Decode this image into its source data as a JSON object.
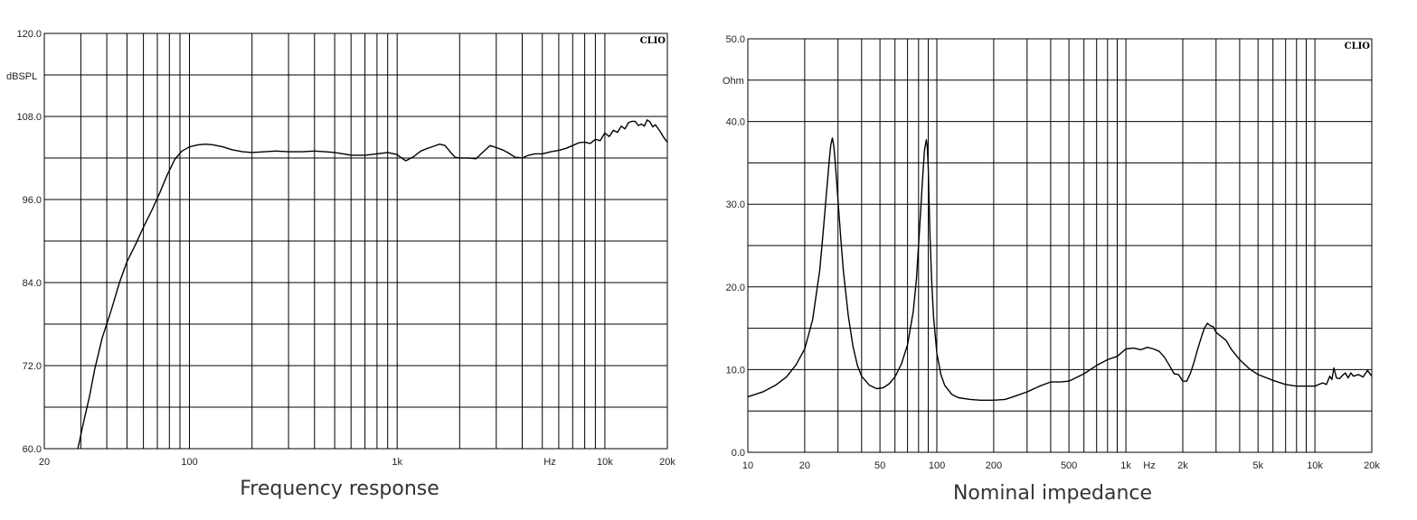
{
  "chart_data": [
    {
      "type": "line",
      "caption": "Frequency response",
      "brand": "CLIO",
      "ylabel": "dBSPL",
      "xlabel": "Hz",
      "x_scale": "log",
      "xlim": [
        20,
        20000
      ],
      "ylim": [
        60,
        120
      ],
      "y_ticks": [
        {
          "value": 60,
          "label": "60.0"
        },
        {
          "value": 72,
          "label": "72.0"
        },
        {
          "value": 84,
          "label": "84.0"
        },
        {
          "value": 96,
          "label": "96.0"
        },
        {
          "value": 108,
          "label": "108.0"
        },
        {
          "value": 120,
          "label": "120.0"
        }
      ],
      "y_gridlines": [
        60,
        66,
        72,
        78,
        84,
        90,
        96,
        102,
        108,
        114,
        120
      ],
      "x_ticks": [
        {
          "value": 20,
          "label": "20"
        },
        {
          "value": 100,
          "label": "100"
        },
        {
          "value": 1000,
          "label": "1k"
        },
        {
          "value": 10000,
          "label": "10k"
        },
        {
          "value": 20000,
          "label": "20k"
        }
      ],
      "x_gridlines": [
        30,
        40,
        50,
        60,
        70,
        80,
        90,
        100,
        200,
        300,
        400,
        500,
        600,
        700,
        800,
        900,
        1000,
        2000,
        3000,
        4000,
        5000,
        6000,
        7000,
        8000,
        9000,
        10000,
        20000
      ],
      "grid": true,
      "series": [
        {
          "x": [
            29,
            31,
            33,
            35,
            38,
            42,
            46,
            50,
            55,
            60,
            66,
            72,
            78,
            85,
            92,
            100,
            110,
            120,
            130,
            145,
            160,
            180,
            200,
            230,
            260,
            300,
            350,
            400,
            450,
            500,
            550,
            600,
            650,
            700,
            800,
            900,
            1000,
            1050,
            1100,
            1200,
            1300,
            1400,
            1500,
            1600,
            1700,
            1800,
            1900,
            2000,
            2100,
            2200,
            2400,
            2600,
            2800,
            3000,
            3200,
            3400,
            3700,
            4000,
            4300,
            4600,
            5000,
            5500,
            6000,
            6500,
            7000,
            7500,
            8000,
            8500,
            9000,
            9500,
            10000,
            10500,
            11000,
            11500,
            12000,
            12500,
            13000,
            13500,
            14000,
            14500,
            15000,
            15500,
            16000,
            16500,
            17000,
            17500,
            18000,
            18500,
            19000,
            19500,
            20000
          ],
          "y": [
            60,
            64,
            67.5,
            71.5,
            76,
            80,
            84,
            87,
            89.5,
            92,
            94.5,
            97,
            99.5,
            101.8,
            103,
            103.6,
            103.9,
            104,
            103.9,
            103.6,
            103.2,
            102.9,
            102.8,
            102.9,
            103,
            102.9,
            102.9,
            103,
            102.9,
            102.8,
            102.6,
            102.4,
            102.4,
            102.4,
            102.6,
            102.8,
            102.5,
            102,
            101.6,
            102.2,
            103,
            103.4,
            103.7,
            104,
            103.8,
            102.9,
            102.1,
            102,
            102,
            102,
            101.9,
            102.9,
            103.8,
            103.5,
            103.2,
            102.8,
            102.1,
            102,
            102.4,
            102.6,
            102.6,
            102.9,
            103.1,
            103.4,
            103.8,
            104.2,
            104.3,
            104.1,
            104.7,
            104.5,
            105.6,
            105.1,
            106,
            105.7,
            106.6,
            106.2,
            107.1,
            107.3,
            107.3,
            106.7,
            106.9,
            106.6,
            107.5,
            107.2,
            106.5,
            106.8,
            106.3,
            105.8,
            105.2,
            104.7,
            104.3
          ]
        }
      ]
    },
    {
      "type": "line",
      "caption": "Nominal impedance",
      "brand": "CLIO",
      "ylabel": "Ohm",
      "xlabel": "Hz",
      "x_scale": "log",
      "xlim": [
        10,
        20000
      ],
      "ylim": [
        0,
        50
      ],
      "y_ticks": [
        {
          "value": 0,
          "label": "0.0"
        },
        {
          "value": 10,
          "label": "10.0"
        },
        {
          "value": 20,
          "label": "20.0"
        },
        {
          "value": 30,
          "label": "30.0"
        },
        {
          "value": 40,
          "label": "40.0"
        },
        {
          "value": 50,
          "label": "50.0"
        }
      ],
      "y_gridlines": [
        0,
        5,
        10,
        15,
        20,
        25,
        30,
        35,
        40,
        45,
        50
      ],
      "x_ticks": [
        {
          "value": 10,
          "label": "10"
        },
        {
          "value": 20,
          "label": "20"
        },
        {
          "value": 50,
          "label": "50"
        },
        {
          "value": 100,
          "label": "100"
        },
        {
          "value": 200,
          "label": "200"
        },
        {
          "value": 500,
          "label": "500"
        },
        {
          "value": 1000,
          "label": "1k"
        },
        {
          "value": 2000,
          "label": "2k"
        },
        {
          "value": 5000,
          "label": "5k"
        },
        {
          "value": 10000,
          "label": "10k"
        },
        {
          "value": 20000,
          "label": "20k"
        }
      ],
      "x_gridlines": [
        10,
        20,
        30,
        40,
        50,
        60,
        70,
        80,
        90,
        100,
        200,
        300,
        400,
        500,
        600,
        700,
        800,
        900,
        1000,
        2000,
        3000,
        4000,
        5000,
        6000,
        7000,
        8000,
        9000,
        10000,
        20000
      ],
      "grid": true,
      "series": [
        {
          "x": [
            10,
            12,
            14,
            16,
            18,
            20,
            22,
            24,
            25,
            26,
            27,
            27.5,
            28,
            28.5,
            29,
            30,
            31,
            32,
            34,
            36,
            38,
            40,
            44,
            48,
            52,
            56,
            60,
            65,
            70,
            75,
            78,
            81,
            84,
            86,
            88,
            89,
            90,
            91,
            92,
            94,
            96,
            100,
            105,
            110,
            120,
            130,
            150,
            170,
            200,
            230,
            260,
            300,
            350,
            400,
            450,
            500,
            600,
            700,
            800,
            900,
            1000,
            1100,
            1200,
            1300,
            1400,
            1500,
            1600,
            1700,
            1800,
            1900,
            2000,
            2100,
            2200,
            2300,
            2400,
            2500,
            2600,
            2700,
            2800,
            2900,
            3000,
            3200,
            3400,
            3600,
            4000,
            4500,
            5000,
            6000,
            7000,
            8000,
            9000,
            10000,
            11000,
            11500,
            12000,
            12300,
            12600,
            13000,
            13500,
            14000,
            14500,
            15000,
            15500,
            16000,
            17000,
            18000,
            19000,
            20000
          ],
          "y": [
            6.7,
            7.3,
            8.1,
            9.1,
            10.6,
            12.5,
            16,
            22,
            26.5,
            31,
            35.5,
            37.2,
            38,
            37,
            35,
            30.5,
            26,
            22,
            16.5,
            12.8,
            10.5,
            9.2,
            8.1,
            7.7,
            7.8,
            8.3,
            9.1,
            10.7,
            13,
            17,
            21,
            27,
            33,
            36.5,
            37.8,
            37,
            34.5,
            30,
            26,
            20.5,
            16.5,
            12,
            9.4,
            8.1,
            7.0,
            6.6,
            6.4,
            6.3,
            6.3,
            6.4,
            6.8,
            7.3,
            8,
            8.5,
            8.5,
            8.6,
            9.5,
            10.5,
            11.2,
            11.6,
            12.5,
            12.6,
            12.4,
            12.7,
            12.5,
            12.2,
            11.5,
            10.5,
            9.5,
            9.4,
            8.6,
            8.6,
            9.6,
            11.0,
            12.5,
            13.8,
            15.0,
            15.6,
            15.3,
            15.2,
            14.5,
            14.0,
            13.5,
            12.5,
            11.2,
            10.1,
            9.4,
            8.7,
            8.2,
            8.0,
            8.0,
            8.0,
            8.4,
            8.2,
            9.2,
            8.8,
            10.2,
            9.0,
            8.9,
            9.3,
            9.6,
            9.0,
            9.6,
            9.2,
            9.4,
            9.1,
            9.9,
            9.2
          ]
        }
      ]
    }
  ]
}
